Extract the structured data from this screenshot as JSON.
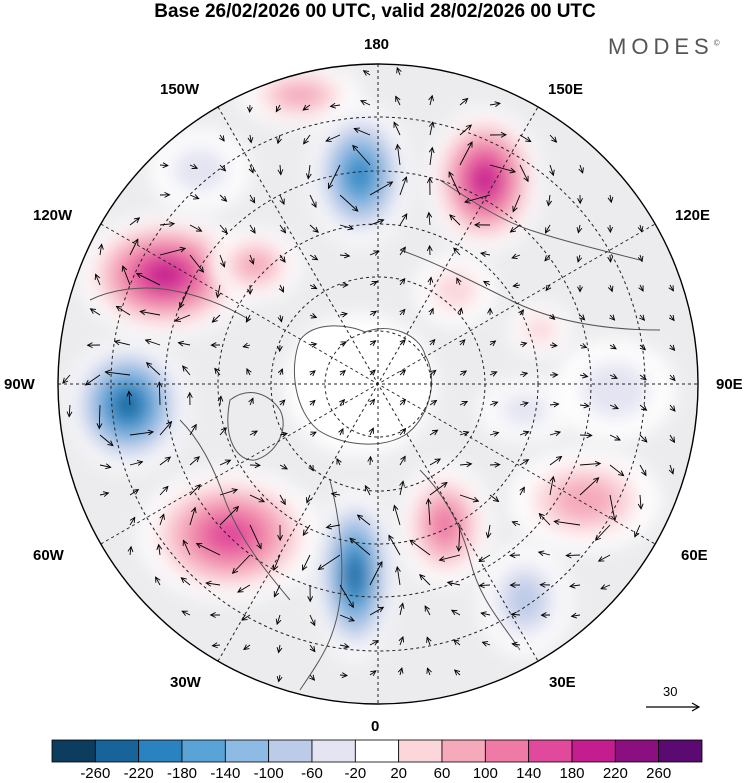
{
  "title": "Base 26/02/2026 00 UTC, valid 28/02/2026 00 UTC",
  "brand": "MODES",
  "brand_mark": "©",
  "longitude_labels": {
    "top": "180",
    "bottom": "0",
    "left": "90W",
    "right": "90E",
    "l150": "150W",
    "r150": "150E",
    "l120": "120W",
    "r120": "120E",
    "l60": "60W",
    "r60": "60E",
    "l30": "30W",
    "r30": "30E"
  },
  "vector_reference": "30",
  "colorbar": {
    "labels": [
      "-260",
      "-220",
      "-180",
      "-140",
      "-100",
      "-60",
      "-20",
      "20",
      "60",
      "100",
      "140",
      "180",
      "220",
      "260"
    ],
    "colors": [
      "#0d3d5e",
      "#17639a",
      "#2a83c0",
      "#5aa3d6",
      "#8dbbe3",
      "#bccbe8",
      "#e4e4f2",
      "#ffffff",
      "#fbd7dc",
      "#f5a9bb",
      "#ee7aa5",
      "#e14a9c",
      "#c41d8e",
      "#8b0f80",
      "#5a0a70"
    ]
  }
}
